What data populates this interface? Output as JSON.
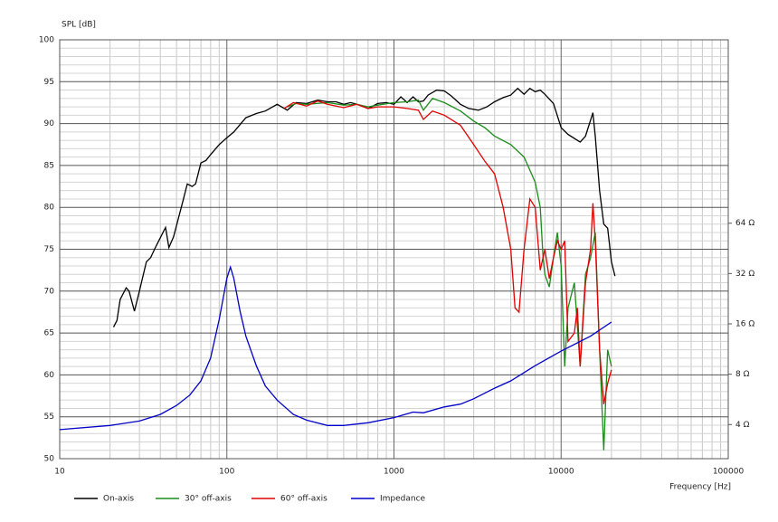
{
  "chart_data": {
    "type": "line",
    "ylabel": "SPL [dB]",
    "xlabel": "Frequency [Hz]",
    "xscale": "log",
    "xlim": [
      10,
      100000
    ],
    "xticks": [
      10,
      100,
      1000,
      10000,
      100000
    ],
    "ylim": [
      50,
      100
    ],
    "yticks": [
      50,
      55,
      60,
      65,
      70,
      75,
      80,
      85,
      90,
      95,
      100
    ],
    "y2scale": "log",
    "y2lim": [
      2.5,
      800
    ],
    "y2ticks": [
      {
        "value": 4,
        "label": "4 Ω"
      },
      {
        "value": 8,
        "label": "8 Ω"
      },
      {
        "value": 16,
        "label": "16 Ω"
      },
      {
        "value": 32,
        "label": "32 Ω"
      },
      {
        "value": 64,
        "label": "64 Ω"
      }
    ],
    "grid": true,
    "legend": "bottom",
    "series": [
      {
        "name": "On-axis",
        "color": "#000000",
        "x": [
          21,
          22,
          23,
          25,
          26,
          28,
          30,
          33,
          35,
          38,
          43,
          45,
          48,
          55,
          58,
          62,
          65,
          70,
          75,
          80,
          90,
          100,
          110,
          130,
          150,
          170,
          200,
          230,
          260,
          300,
          350,
          400,
          450,
          500,
          550,
          600,
          700,
          800,
          900,
          1000,
          1100,
          1200,
          1300,
          1400,
          1500,
          1600,
          1800,
          2000,
          2200,
          2500,
          2800,
          3200,
          3600,
          4000,
          4500,
          5000,
          5500,
          6000,
          6500,
          7000,
          7500,
          8000,
          9000,
          10000,
          11000,
          13000,
          14000,
          15500,
          16000,
          17000,
          18000,
          19000,
          20000,
          21000
        ],
        "values": [
          65.7,
          66.5,
          69,
          70.4,
          70,
          67.6,
          70,
          73.5,
          74,
          75.5,
          77.6,
          75.2,
          76.5,
          81,
          82.8,
          82.5,
          82.8,
          85.3,
          85.6,
          86.3,
          87.5,
          88.3,
          89,
          90.7,
          91.2,
          91.5,
          92.3,
          91.6,
          92.5,
          92.4,
          92.8,
          92.6,
          92.6,
          92.3,
          92.5,
          92.3,
          91.8,
          92.4,
          92.5,
          92.3,
          93.2,
          92.5,
          93.2,
          92.6,
          92.7,
          93.4,
          94,
          93.9,
          93.3,
          92.3,
          91.8,
          91.6,
          92,
          92.6,
          93.1,
          93.4,
          94.2,
          93.5,
          94.2,
          93.8,
          94,
          93.5,
          92.4,
          89.5,
          88.7,
          87.8,
          88.5,
          91.3,
          88.5,
          82,
          78,
          77.5,
          73.5,
          71.8
        ]
      },
      {
        "name": "30° off-axis",
        "color": "#1a8c1a",
        "x": [
          230,
          260,
          300,
          400,
          500,
          600,
          700,
          800,
          1000,
          1200,
          1400,
          1500,
          1700,
          2000,
          2500,
          3000,
          3500,
          4000,
          5000,
          6000,
          7000,
          7500,
          7800,
          8000,
          8500,
          9000,
          9500,
          10000,
          10500,
          11000,
          12000,
          13000,
          14000,
          15000,
          16000,
          17000,
          18000,
          19000,
          20000
        ],
        "values": [
          92,
          92.4,
          92.3,
          92.5,
          92.2,
          92.3,
          92,
          92.2,
          92.5,
          92.6,
          92.8,
          91.6,
          93,
          92.5,
          91.5,
          90.3,
          89.5,
          88.5,
          87.5,
          86,
          83,
          80,
          74,
          72,
          70.5,
          74,
          77,
          73,
          61,
          68,
          71,
          61,
          72,
          74,
          77,
          63,
          51,
          63,
          61
        ]
      },
      {
        "name": "60° off-axis",
        "color": "#e00000",
        "x": [
          220,
          250,
          300,
          350,
          400,
          500,
          600,
          700,
          800,
          1000,
          1200,
          1400,
          1500,
          1700,
          2000,
          2500,
          3000,
          3500,
          4000,
          4500,
          5000,
          5300,
          5600,
          6000,
          6500,
          7000,
          7500,
          8000,
          8500,
          9000,
          9500,
          10000,
          10500,
          11000,
          12000,
          12500,
          13000,
          14000,
          15000,
          15500,
          16000,
          17000,
          18000,
          19000,
          20000
        ],
        "values": [
          91.8,
          92.5,
          92.1,
          92.7,
          92.3,
          91.9,
          92.3,
          91.8,
          92,
          92,
          91.8,
          91.6,
          90.5,
          91.5,
          91,
          89.8,
          87.5,
          85.5,
          84,
          80,
          75,
          68,
          67.5,
          75,
          81,
          80,
          72.5,
          75,
          71.5,
          74,
          76,
          75,
          76,
          64,
          65,
          68,
          61,
          71,
          75,
          80.5,
          76,
          63,
          56.5,
          59,
          60.6
        ]
      },
      {
        "name": "Impedance",
        "color": "#0000c8",
        "axis": "y2",
        "x": [
          10,
          20,
          30,
          40,
          50,
          60,
          70,
          80,
          90,
          100,
          105,
          110,
          120,
          130,
          150,
          170,
          200,
          250,
          300,
          400,
          500,
          700,
          1000,
          1300,
          1500,
          2000,
          2500,
          3000,
          4000,
          5000,
          7000,
          10000,
          15000,
          20000
        ],
        "values": [
          3.73,
          3.95,
          4.2,
          4.6,
          5.2,
          6.0,
          7.3,
          10,
          17,
          30,
          35,
          30,
          19,
          13.5,
          9,
          6.8,
          5.6,
          4.6,
          4.25,
          3.95,
          3.95,
          4.1,
          4.4,
          4.75,
          4.7,
          5.1,
          5.3,
          5.7,
          6.6,
          7.3,
          9,
          11,
          13.5,
          16.4
        ]
      }
    ]
  }
}
